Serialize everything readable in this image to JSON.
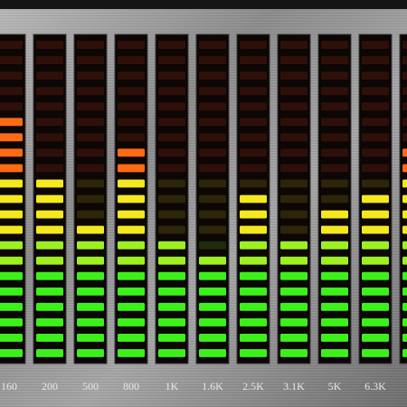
{
  "chart_data": {
    "type": "bar",
    "categories": [
      "160",
      "200",
      "500",
      "800",
      "1K",
      "1.6K",
      "2.5K",
      "3.1K",
      "5K",
      "6.3K",
      null
    ],
    "values": [
      16,
      12,
      9,
      14,
      8,
      7,
      11,
      8,
      10,
      11,
      14
    ],
    "ylim": [
      0,
      21
    ]
  }
}
